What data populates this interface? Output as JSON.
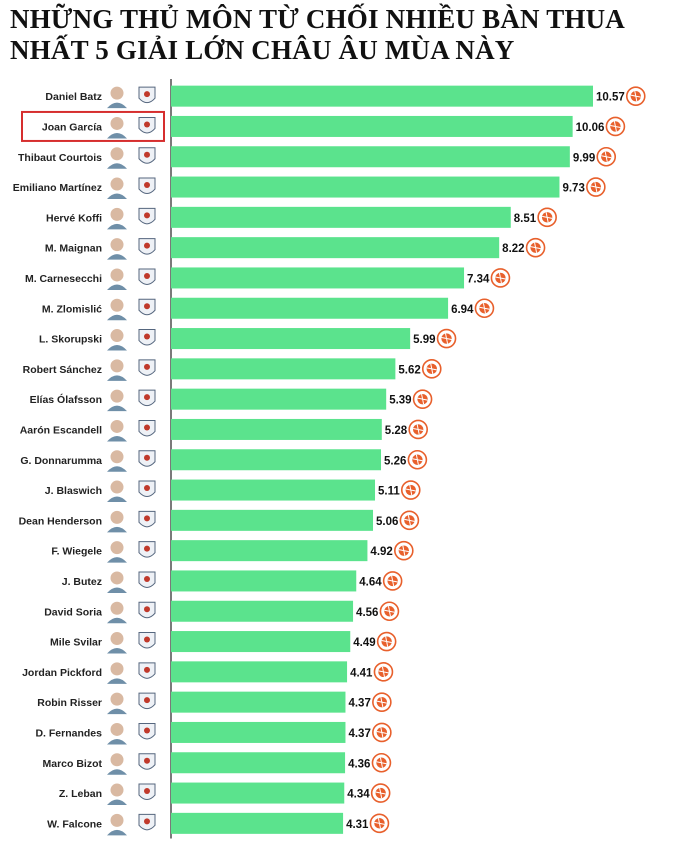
{
  "title_lines": [
    "NHỮNG THỦ MÔN TỪ CHỐI NHIỀU BÀN THUA",
    "NHẤT 5 GIẢI LỚN CHÂU ÂU MÙA NÀY"
  ],
  "colors": {
    "bar": "#5be38d",
    "axis": "#222222",
    "highlight_box": "#d62e2e",
    "ball_icon": "#e8602c"
  },
  "highlight": "Joan García",
  "chart_data": {
    "type": "bar",
    "orientation": "horizontal",
    "title": "NHỮNG THỦ MÔN TỪ CHỐI NHIỀU BÀN THUA NHẤT 5 GIẢI LỚN CHÂU ÂU MÙA NÀY",
    "categories": [
      "Daniel Batz",
      "Joan García",
      "Thibaut Courtois",
      "Emiliano Martínez",
      "Hervé Koffi",
      "M. Maignan",
      "M. Carnesecchi",
      "M. Zlomislić",
      "L. Skorupski",
      "Robert Sánchez",
      "Elías Ólafsson",
      "Aarón Escandell",
      "G. Donnarumma",
      "J. Blaswich",
      "Dean Henderson",
      "F. Wiegele",
      "J. Butez",
      "David Soria",
      "Mile Svilar",
      "Jordan Pickford",
      "Robin Risser",
      "D. Fernandes",
      "Marco Bizot",
      "Z. Leban",
      "W. Falcone"
    ],
    "values": [
      10.57,
      10.06,
      9.99,
      9.73,
      8.51,
      8.22,
      7.34,
      6.94,
      5.99,
      5.62,
      5.39,
      5.28,
      5.26,
      5.11,
      5.06,
      4.92,
      4.64,
      4.56,
      4.49,
      4.41,
      4.37,
      4.37,
      4.36,
      4.34,
      4.31
    ],
    "value_labels": [
      "10.57",
      "10.06",
      "9.99",
      "9.73",
      "8.51",
      "8.22",
      "7.34",
      "6.94",
      "5.99",
      "5.62",
      "5.39",
      "5.28",
      "5.26",
      "5.11",
      "5.06",
      "4.92",
      "4.64",
      "4.56",
      "4.49",
      "4.41",
      "4.37",
      "4.37",
      "4.36",
      "4.34",
      "4.31"
    ],
    "xlim": [
      0,
      10.57
    ],
    "grid": false,
    "legend": "none"
  }
}
